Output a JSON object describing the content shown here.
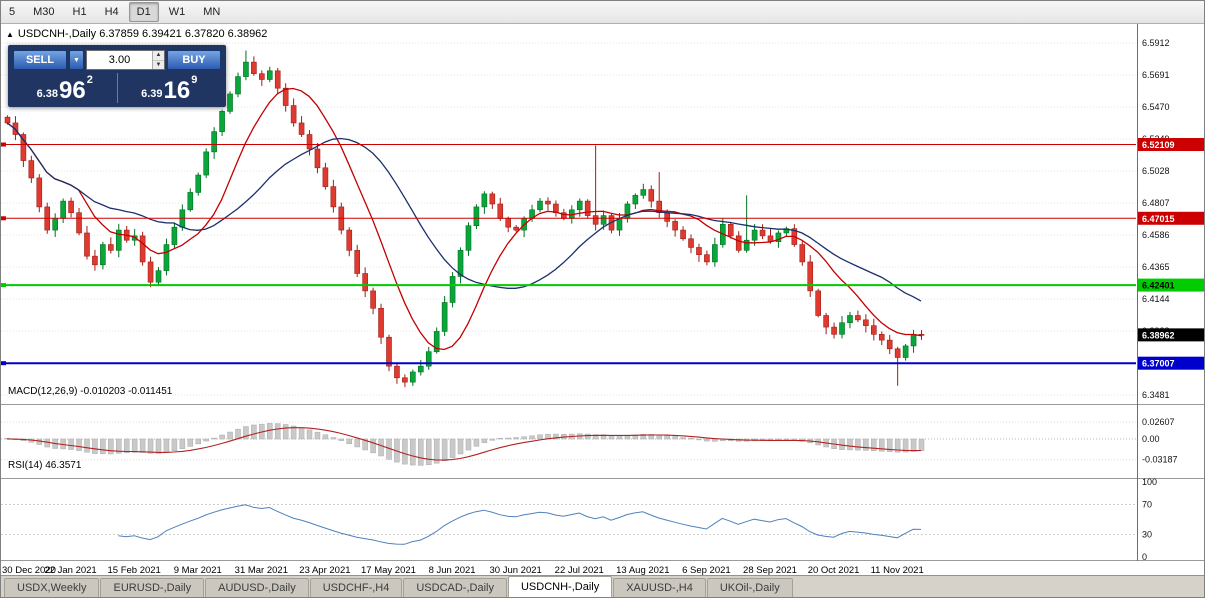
{
  "toolbar": {
    "timeframes": [
      "5",
      "M30",
      "H1",
      "H4",
      "D1",
      "W1",
      "MN"
    ],
    "active": "D1"
  },
  "quote_bar": {
    "direction_icon": "▲",
    "text": "USDCNH-,Daily 6.37859 6.39421 6.37820 6.38962"
  },
  "trade_panel": {
    "sell_label": "SELL",
    "buy_label": "BUY",
    "volume": "3.00",
    "sell_price": {
      "prefix": "6.38",
      "big": "96",
      "sup": "2"
    },
    "buy_price": {
      "prefix": "6.39",
      "big": "16",
      "sup": "9"
    }
  },
  "indicators": {
    "macd_label": "MACD(12,26,9) -0.010203 -0.011451",
    "rsi_label": "RSI(14) 46.3571"
  },
  "tabs": {
    "items": [
      "USDX,Weekly",
      "EURUSD-,Daily",
      "AUDUSD-,Daily",
      "USDCHF-,H4",
      "USDCAD-,Daily",
      "USDCNH-,Daily",
      "XAUUSD-,H4",
      "UKOil-,Daily"
    ],
    "active": "USDCNH-,Daily"
  },
  "chart_data": {
    "type": "candlestick",
    "symbol": "USDCNH-",
    "timeframe": "Daily",
    "ohlc_quote": {
      "open": 6.37859,
      "high": 6.39421,
      "low": 6.3782,
      "close": 6.38962
    },
    "x_labels": [
      "30 Dec 2020",
      "22 Jan 2021",
      "15 Feb 2021",
      "9 Mar 2021",
      "31 Mar 2021",
      "23 Apr 2021",
      "17 May 2021",
      "8 Jun 2021",
      "30 Jun 2021",
      "22 Jul 2021",
      "13 Aug 2021",
      "6 Sep 2021",
      "28 Sep 2021",
      "20 Oct 2021",
      "11 Nov 2021"
    ],
    "candles_per_label": 8,
    "closes": [
      6.536,
      6.528,
      6.51,
      6.498,
      6.478,
      6.462,
      6.47,
      6.482,
      6.474,
      6.46,
      6.444,
      6.438,
      6.452,
      6.448,
      6.462,
      6.455,
      6.458,
      6.44,
      6.426,
      6.434,
      6.452,
      6.464,
      6.476,
      6.488,
      6.5,
      6.516,
      6.53,
      6.544,
      6.556,
      6.568,
      6.578,
      6.57,
      6.566,
      6.572,
      6.56,
      6.548,
      6.536,
      6.528,
      6.518,
      6.505,
      6.492,
      6.478,
      6.462,
      6.448,
      6.432,
      6.42,
      6.408,
      6.388,
      6.368,
      6.36,
      6.357,
      6.364,
      6.368,
      6.378,
      6.392,
      6.412,
      6.43,
      6.448,
      6.465,
      6.478,
      6.487,
      6.48,
      6.47,
      6.464,
      6.462,
      6.47,
      6.476,
      6.482,
      6.48,
      6.474,
      6.47,
      6.476,
      6.482,
      6.472,
      6.466,
      6.472,
      6.462,
      6.47,
      6.48,
      6.486,
      6.49,
      6.482,
      6.474,
      6.468,
      6.462,
      6.456,
      6.45,
      6.445,
      6.44,
      6.452,
      6.466,
      6.458,
      6.448,
      6.455,
      6.462,
      6.458,
      6.454,
      6.46,
      6.463,
      6.452,
      6.44,
      6.42,
      6.403,
      6.395,
      6.39,
      6.398,
      6.403,
      6.4,
      6.396,
      6.39,
      6.386,
      6.38,
      6.374,
      6.382,
      6.39,
      6.3896
    ],
    "wick_overrides": {
      "30": {
        "high": 6.586
      },
      "50": {
        "low": 6.3535
      },
      "74": {
        "high": 6.5205
      },
      "82": {
        "high": 6.502
      },
      "93": {
        "high": 6.486
      },
      "112": {
        "low": 6.3545
      }
    },
    "y_axis_labels": [
      "6.5912",
      "6.5691",
      "6.5470",
      "6.5249",
      "6.5028",
      "6.4807",
      "6.4586",
      "6.4365",
      "6.4144",
      "6.3923",
      "6.3702",
      "6.3481"
    ],
    "y_axis": {
      "top_value": 6.5912,
      "step": 0.0221
    },
    "levels": [
      {
        "value": 6.52109,
        "label": "6.52109",
        "color": "#cc0000",
        "text_color": "#ffffff",
        "width": 1
      },
      {
        "value": 6.47015,
        "label": "6.47015",
        "color": "#cc0000",
        "text_color": "#ffffff",
        "width": 1
      },
      {
        "value": 6.42401,
        "label": "6.42401",
        "color": "#00cc00",
        "text_color": "#000000",
        "width": 2
      },
      {
        "value": 6.37007,
        "label": "6.37007",
        "color": "#0000cc",
        "text_color": "#ffffff",
        "width": 2
      }
    ],
    "current_price": {
      "value": 6.38962,
      "label": "6.38962",
      "color": "#000000",
      "text_color": "#ffffff"
    },
    "moving_averages": [
      {
        "period": 10,
        "color": "#c40000"
      },
      {
        "period": 22,
        "color": "#1c2f6e"
      }
    ],
    "macd": {
      "params": [
        12,
        26,
        9
      ],
      "value": -0.010203,
      "signal_value": -0.011451,
      "axis_labels": [
        "0.02607",
        "0.00",
        "-0.03187"
      ],
      "axis_values": [
        0.02607,
        0,
        -0.03187
      ],
      "histogram_color": "#c9c9c9",
      "signal_color": "#b22222"
    },
    "rsi": {
      "period": 14,
      "value": 46.3571,
      "axis_labels": [
        "100",
        "70",
        "30",
        "0"
      ],
      "axis_values": [
        100,
        70,
        30,
        0
      ],
      "guide_levels": [
        70,
        30
      ],
      "line_color": "#4f81bd"
    },
    "colors": {
      "up_fill": "#0aa63c",
      "up_stroke": "#00701f",
      "down_fill": "#e03a30",
      "down_stroke": "#9c1f17",
      "grid": "#e4e4e4",
      "axis_line": "#6d6d6d",
      "divider": "#9a9a9a"
    }
  }
}
